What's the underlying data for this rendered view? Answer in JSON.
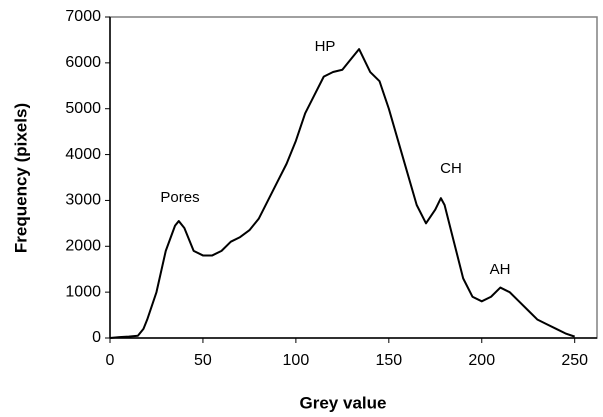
{
  "chart_data": {
    "type": "line",
    "xlabel": "Grey value",
    "ylabel": "Frequency (pixels)",
    "annotations": [
      "Pores",
      "HP",
      "CH",
      "AH"
    ],
    "x": [
      0,
      5,
      10,
      15,
      18,
      20,
      25,
      30,
      35,
      37,
      40,
      45,
      50,
      55,
      60,
      65,
      70,
      75,
      80,
      85,
      90,
      95,
      100,
      105,
      110,
      115,
      120,
      125,
      130,
      134,
      140,
      145,
      150,
      155,
      160,
      165,
      170,
      175,
      178,
      180,
      185,
      190,
      195,
      200,
      205,
      210,
      215,
      220,
      225,
      230,
      235,
      240,
      245,
      250
    ],
    "series": [
      {
        "name": "Frequency",
        "color": "#000000",
        "values": [
          0,
          20,
          30,
          50,
          200,
          400,
          1000,
          1900,
          2450,
          2550,
          2400,
          1900,
          1800,
          1800,
          1900,
          2100,
          2200,
          2350,
          2600,
          3000,
          3400,
          3800,
          4300,
          4900,
          5300,
          5700,
          5800,
          5850,
          6100,
          6300,
          5800,
          5600,
          5000,
          4300,
          3600,
          2900,
          2500,
          2800,
          3050,
          2900,
          2100,
          1300,
          900,
          800,
          900,
          1100,
          1000,
          800,
          600,
          400,
          300,
          200,
          100,
          30
        ]
      }
    ],
    "xlim": [
      0,
      262
    ],
    "xticks": [
      0,
      50,
      100,
      150,
      200,
      250
    ],
    "ylim": [
      0,
      7000
    ],
    "yticks": [
      0,
      1000,
      2000,
      3000,
      4000,
      5000,
      6000,
      7000
    ],
    "grid": false
  }
}
